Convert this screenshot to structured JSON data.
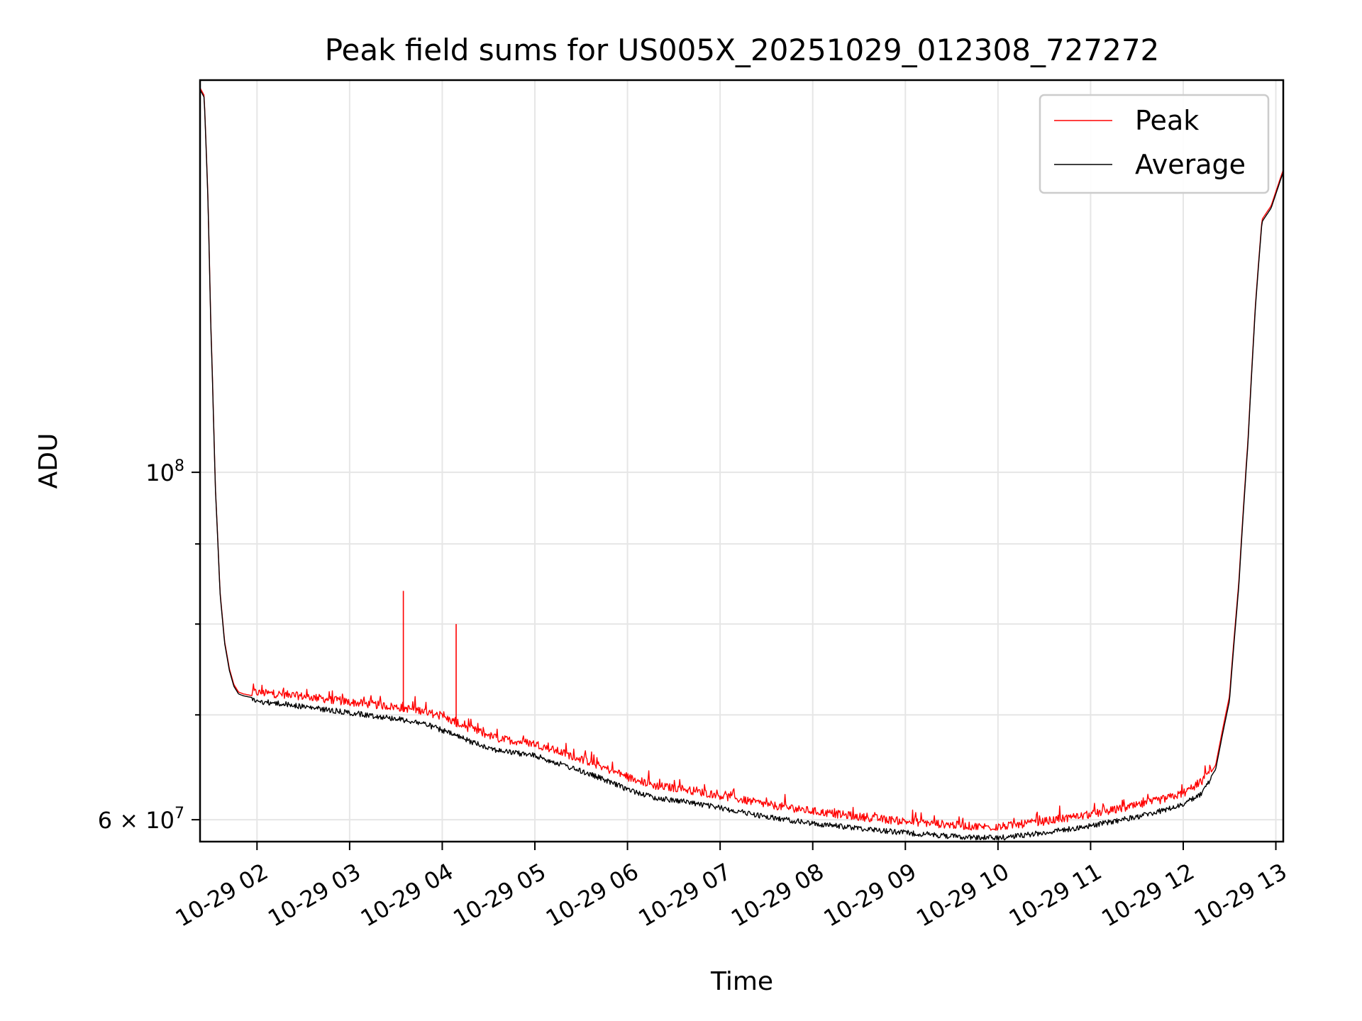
{
  "chart_data": {
    "type": "line",
    "title": "Peak field sums for US005X_20251029_012308_727272",
    "xlabel": "Time",
    "ylabel": "ADU",
    "yscale": "log",
    "xlim_hours": [
      1.385,
      13.08
    ],
    "ylim": [
      58100000,
      178000000
    ],
    "x_ticks": [
      {
        "hour": 2,
        "label": "10-29 02"
      },
      {
        "hour": 3,
        "label": "10-29 03"
      },
      {
        "hour": 4,
        "label": "10-29 04"
      },
      {
        "hour": 5,
        "label": "10-29 05"
      },
      {
        "hour": 6,
        "label": "10-29 06"
      },
      {
        "hour": 7,
        "label": "10-29 07"
      },
      {
        "hour": 8,
        "label": "10-29 08"
      },
      {
        "hour": 9,
        "label": "10-29 09"
      },
      {
        "hour": 10,
        "label": "10-29 10"
      },
      {
        "hour": 11,
        "label": "10-29 11"
      },
      {
        "hour": 12,
        "label": "10-29 12"
      },
      {
        "hour": 13,
        "label": "10-29 13"
      }
    ],
    "y_major_ticks": [
      {
        "value": 100000000,
        "base": "10",
        "exp": "8"
      },
      {
        "value": 60000000,
        "base": "6 × 10",
        "exp": "7"
      }
    ],
    "y_minor_ticks": [
      70000000,
      80000000,
      90000000
    ],
    "grid": true,
    "legend": {
      "location": "upper right",
      "entries": [
        "Peak",
        "Average"
      ]
    },
    "series": [
      {
        "name": "Peak",
        "color": "#ff0000",
        "x": [
          1.385,
          1.43,
          1.47,
          1.5,
          1.55,
          1.6,
          1.65,
          1.7,
          1.75,
          1.8,
          1.85,
          1.9,
          1.95,
          2.0,
          2.3,
          2.6,
          3.0,
          3.5,
          3.8,
          4.0,
          4.3,
          4.6,
          5.0,
          5.3,
          5.6,
          6.0,
          6.3,
          6.6,
          7.0,
          7.5,
          8.0,
          8.5,
          9.0,
          9.5,
          9.75,
          10.0,
          10.5,
          11.0,
          11.5,
          11.8,
          12.0,
          12.2,
          12.35,
          12.5,
          12.6,
          12.7,
          12.78,
          12.85,
          12.95,
          13.08
        ],
        "y": [
          176000000,
          174000000,
          150000000,
          125000000,
          98000000,
          84000000,
          78000000,
          75000000,
          73200000,
          72400000,
          72200000,
          72100000,
          72000000,
          71900000,
          71700000,
          71400000,
          70900000,
          70400000,
          70000000,
          69400000,
          68200000,
          67200000,
          66700000,
          65800000,
          64900000,
          63500000,
          62700000,
          62400000,
          61800000,
          61000000,
          60400000,
          59900000,
          59500000,
          59200000,
          59050000,
          59000000,
          59500000,
          60100000,
          60900000,
          61500000,
          62000000,
          63000000,
          65000000,
          72000000,
          85000000,
          105000000,
          128000000,
          145000000,
          148000000,
          156000000
        ]
      },
      {
        "name": "Average",
        "color": "#000000",
        "x": [
          1.385,
          1.43,
          1.47,
          1.5,
          1.55,
          1.6,
          1.65,
          1.7,
          1.75,
          1.8,
          1.85,
          1.9,
          1.95,
          2.0,
          2.3,
          2.6,
          3.0,
          3.5,
          3.8,
          4.0,
          4.3,
          4.6,
          5.0,
          5.3,
          5.6,
          6.0,
          6.3,
          6.6,
          7.0,
          7.5,
          8.0,
          8.5,
          9.0,
          9.5,
          9.75,
          10.0,
          10.5,
          11.0,
          11.5,
          11.8,
          12.0,
          12.2,
          12.35,
          12.5,
          12.6,
          12.7,
          12.78,
          12.85,
          12.95,
          13.08
        ],
        "y": [
          175500000,
          173500000,
          149500000,
          124500000,
          97800000,
          83800000,
          77800000,
          74800000,
          73000000,
          72200000,
          72000000,
          71900000,
          71800000,
          71700000,
          71400000,
          71000000,
          70500000,
          69900000,
          69400000,
          68700000,
          67600000,
          66700000,
          66200000,
          65300000,
          64400000,
          63000000,
          62200000,
          61900000,
          61300000,
          60500000,
          59900000,
          59500000,
          59100000,
          58800000,
          58700000,
          58650000,
          59100000,
          59700000,
          60500000,
          61100000,
          61600000,
          62600000,
          64600000,
          71500000,
          84500000,
          104500000,
          127500000,
          144500000,
          147500000,
          155500000
        ]
      }
    ],
    "spikes": [
      {
        "series": "Peak",
        "x": 3.58,
        "y": 84000000
      },
      {
        "series": "Peak",
        "x": 4.15,
        "y": 80000000
      }
    ]
  }
}
